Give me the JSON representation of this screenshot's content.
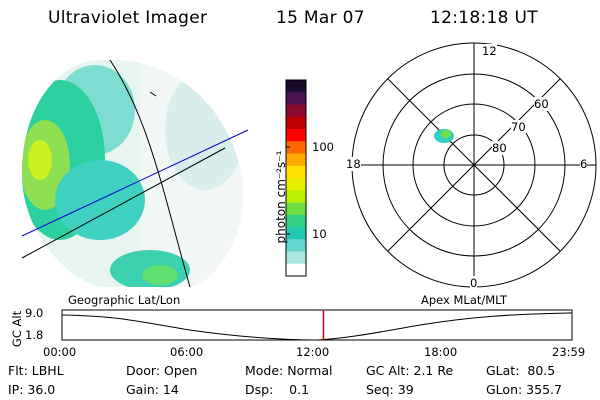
{
  "header": {
    "instrument": "Ultraviolet Imager",
    "date": "15 Mar 07",
    "time": "12:18:18 UT"
  },
  "colorbar": {
    "unit_label": "photon cm⁻²s⁻¹",
    "ticks": [
      "100",
      "10"
    ],
    "colors": [
      "#1a0a2e",
      "#4a1250",
      "#8a0a30",
      "#c00000",
      "#ff0000",
      "#ff6a00",
      "#ffaa00",
      "#ffe000",
      "#e8f000",
      "#b8f000",
      "#70e040",
      "#30d080",
      "#20c8b0",
      "#60d8d0",
      "#a8e8e0",
      "#ffffff"
    ]
  },
  "polar_plot": {
    "mlt_labels": {
      "top": "12",
      "left": "18",
      "right": "6",
      "bottom": "0"
    },
    "lat_labels": [
      "60",
      "70",
      "80"
    ]
  },
  "timeline": {
    "left_title": "Geographic Lat/Lon",
    "right_title": "Apex MLat/MLT",
    "axis_title": "GC Alt",
    "y_ticks": [
      "9.0",
      "1.8"
    ],
    "x_ticks": [
      "00:00",
      "06:00",
      "12:00",
      "18:00",
      "23:59"
    ],
    "current_time_fraction": 0.5127
  },
  "info": {
    "filter": "Flt: LBHL",
    "ip": "IP: 36.0",
    "door": "Door: Open",
    "gain": "Gain: 14",
    "mode": "Mode: Normal",
    "dsp": "Dsp:    0.1",
    "gc_alt": "GC Alt: 2.1 Re",
    "seq": "Seq: 39",
    "glat": "GLat:  80.5",
    "glon": "GLon: 355.7"
  }
}
